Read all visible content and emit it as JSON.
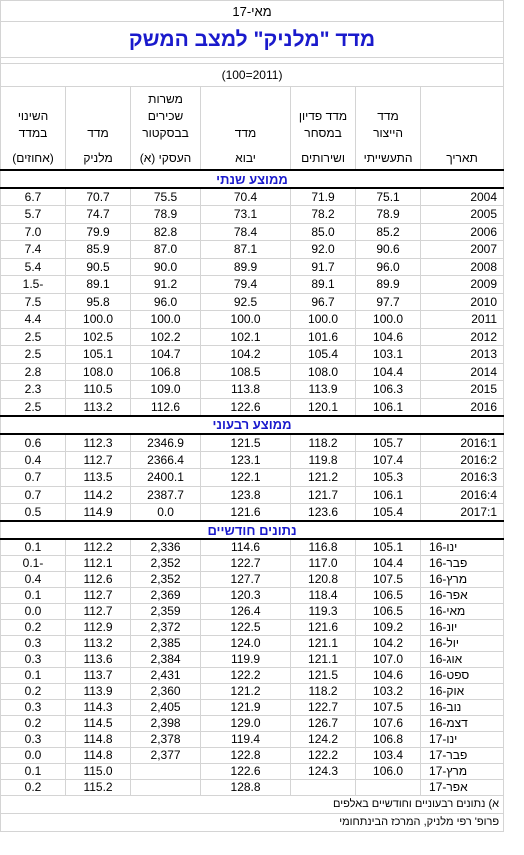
{
  "sheet": {
    "date": "מאי-17",
    "title": "מדד \"מלניק\" למצב המשק",
    "subtitle": "(2011=100)",
    "headers": [
      [
        "תאריך"
      ],
      [
        "מדד",
        "הייצור",
        "התעשייתי"
      ],
      [
        "מדד פדיון",
        "במסחר",
        "ושירותים"
      ],
      [
        "מדד",
        "יבוא"
      ],
      [
        "משרות",
        "שכירים",
        "בבסקטור",
        "העסקי (א)"
      ],
      [
        "מדד",
        "מלניק"
      ],
      [
        "השינוי",
        "במדד",
        "(אחוזים)"
      ]
    ],
    "sections": [
      {
        "title": "ממוצע שנתי",
        "rows": [
          [
            "2004",
            "75.1",
            "71.9",
            "70.4",
            "75.5",
            "70.7",
            "6.7"
          ],
          [
            "2005",
            "78.9",
            "78.2",
            "73.1",
            "78.9",
            "74.7",
            "5.7"
          ],
          [
            "2006",
            "85.2",
            "85.0",
            "78.4",
            "82.8",
            "79.9",
            "7.0"
          ],
          [
            "2007",
            "90.6",
            "92.0",
            "87.1",
            "87.0",
            "85.9",
            "7.4"
          ],
          [
            "2008",
            "96.0",
            "91.7",
            "89.9",
            "90.0",
            "90.5",
            "5.4"
          ],
          [
            "2009",
            "89.9",
            "89.1",
            "79.4",
            "91.2",
            "89.1",
            "-1.5"
          ],
          [
            "2010",
            "97.7",
            "96.7",
            "92.5",
            "96.0",
            "95.8",
            "7.5"
          ],
          [
            "2011",
            "100.0",
            "100.0",
            "100.0",
            "100.0",
            "100.0",
            "4.4"
          ],
          [
            "2012",
            "104.6",
            "101.6",
            "102.1",
            "102.2",
            "102.5",
            "2.5"
          ],
          [
            "2013",
            "103.1",
            "105.4",
            "104.2",
            "104.7",
            "105.1",
            "2.5"
          ],
          [
            "2014",
            "104.4",
            "108.0",
            "108.5",
            "106.8",
            "108.0",
            "2.8"
          ],
          [
            "2015",
            "106.3",
            "113.9",
            "113.8",
            "109.0",
            "110.5",
            "2.3"
          ],
          [
            "2016",
            "106.1",
            "120.1",
            "122.6",
            "112.6",
            "113.2",
            "2.5"
          ]
        ]
      },
      {
        "title": "ממוצע רבעוני",
        "rows": [
          [
            "2016:1",
            "105.7",
            "118.2",
            "121.5",
            "2346.9",
            "112.3",
            "0.6"
          ],
          [
            "2016:2",
            "107.4",
            "119.8",
            "123.1",
            "2366.4",
            "112.7",
            "0.4"
          ],
          [
            "2016:3",
            "105.3",
            "121.2",
            "122.1",
            "2400.1",
            "113.5",
            "0.7"
          ],
          [
            "2016:4",
            "106.1",
            "121.7",
            "123.8",
            "2387.7",
            "114.2",
            "0.7"
          ],
          [
            "2017:1",
            "105.4",
            "123.6",
            "121.6",
            "0.0",
            "114.9",
            "0.5"
          ]
        ]
      },
      {
        "title": "נתונים חודשיים",
        "rows": [
          [
            "ינו-16",
            "105.1",
            "116.8",
            "114.6",
            "2,336",
            "112.2",
            "0.1"
          ],
          [
            "פבר-16",
            "104.4",
            "117.0",
            "122.7",
            "2,352",
            "112.1",
            "-0.1"
          ],
          [
            "מרץ-16",
            "107.5",
            "120.8",
            "127.7",
            "2,352",
            "112.6",
            "0.4"
          ],
          [
            "אפר-16",
            "106.5",
            "118.4",
            "120.3",
            "2,369",
            "112.7",
            "0.1"
          ],
          [
            "מאי-16",
            "106.5",
            "119.3",
            "126.4",
            "2,359",
            "112.7",
            "0.0"
          ],
          [
            "יונ-16",
            "109.2",
            "121.6",
            "122.5",
            "2,372",
            "112.9",
            "0.2"
          ],
          [
            "יול-16",
            "104.2",
            "121.1",
            "124.0",
            "2,385",
            "113.2",
            "0.3"
          ],
          [
            "אוג-16",
            "107.0",
            "121.1",
            "119.9",
            "2,384",
            "113.6",
            "0.3"
          ],
          [
            "ספט-16",
            "104.6",
            "121.5",
            "122.2",
            "2,431",
            "113.7",
            "0.1"
          ],
          [
            "אוק-16",
            "103.2",
            "118.2",
            "121.2",
            "2,360",
            "113.9",
            "0.2"
          ],
          [
            "נוב-16",
            "107.5",
            "122.7",
            "121.9",
            "2,405",
            "114.3",
            "0.3"
          ],
          [
            "דצמ-16",
            "107.6",
            "126.7",
            "129.0",
            "2,398",
            "114.5",
            "0.2"
          ],
          [
            "ינו-17",
            "106.8",
            "124.2",
            "119.4",
            "2,378",
            "114.8",
            "0.3"
          ],
          [
            "פבר-17",
            "103.4",
            "122.2",
            "122.8",
            "2,377",
            "114.8",
            "0.0"
          ],
          [
            "מרץ-17",
            "106.0",
            "124.3",
            "122.6",
            null,
            "115.0",
            "0.1"
          ],
          [
            "אפר-17",
            null,
            null,
            "128.8",
            null,
            "115.2",
            "0.2"
          ]
        ]
      }
    ],
    "footnotes": [
      "א) נתונים רבעוניים וחודשיים באלפים",
      "פרופ' רפי מלניק, המרכז הבינתחומי"
    ]
  }
}
